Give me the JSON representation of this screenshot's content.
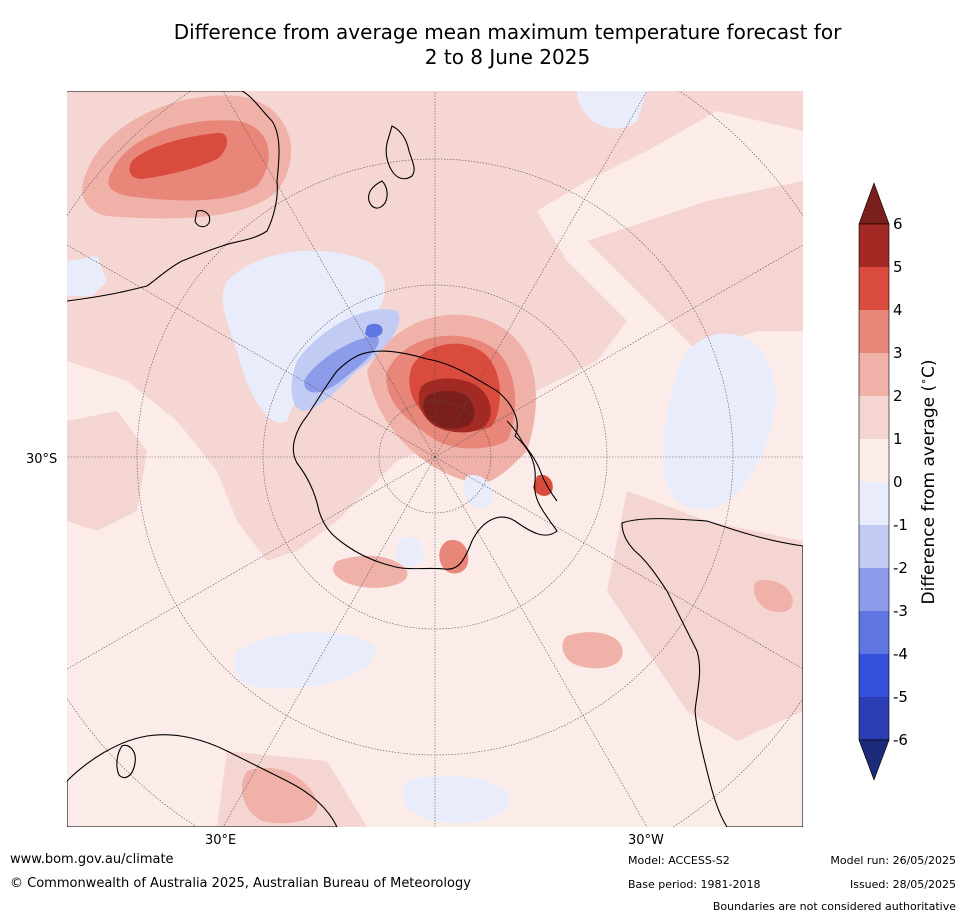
{
  "title": {
    "line1": "Difference from average mean maximum temperature forecast for",
    "line2": "2 to 8 June 2025"
  },
  "map": {
    "projection": "south-polar-stereographic",
    "lat_label": "30°S",
    "lon_labels": [
      "30°E",
      "30°W"
    ]
  },
  "colorbar": {
    "label": "Difference from average ($^\\circ$C)",
    "label_text": "Difference from average (",
    "label_unit": "C)",
    "ticks": [
      "6",
      "5",
      "4",
      "3",
      "2",
      "1",
      "0",
      "-1",
      "-2",
      "-3",
      "-4",
      "-5",
      "-6"
    ],
    "colors_top_to_bottom": [
      "#a32a24",
      "#d94c3d",
      "#e8867a",
      "#f0b1a9",
      "#f5d5d1",
      "#fbece9",
      "#e8ecfb",
      "#c2cbf3",
      "#8c9ceb",
      "#5e75e2",
      "#3550db",
      "#2a3db2"
    ],
    "over_color": "#7a1f1c",
    "under_color": "#1c2a7a"
  },
  "footer": {
    "url": "www.bom.gov.au/climate",
    "copyright": "© Commonwealth of Australia 2025, Australian Bureau of Meteorology",
    "model": "Model: ACCESS-S2",
    "base_period": "Base period: 1981-2018",
    "model_run": "Model run: 26/05/2025",
    "issued": "Issued: 28/05/2025",
    "disclaimer": "Boundaries are not considered authoritative"
  }
}
